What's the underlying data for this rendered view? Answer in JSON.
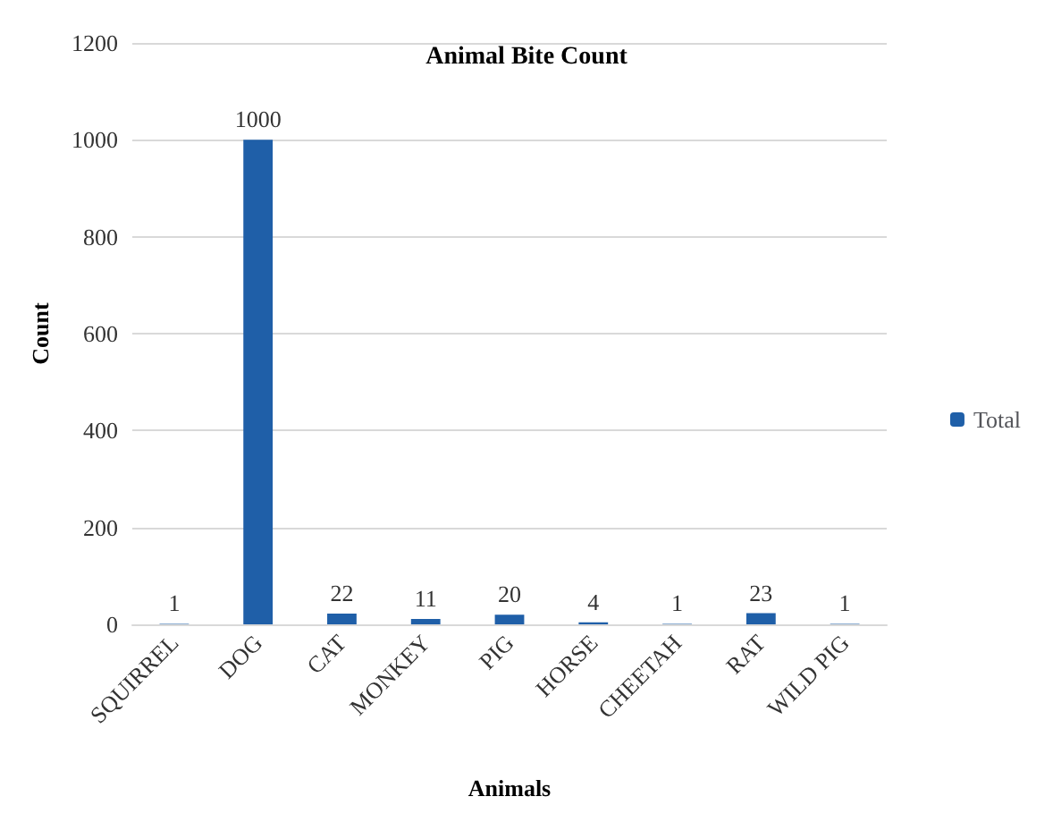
{
  "chart_data": {
    "type": "bar",
    "title": "Animal Bite Count",
    "xlabel": "Animals",
    "ylabel": "Count",
    "categories": [
      "SQUIRREL",
      "DOG",
      "CAT",
      "MONKEY",
      "PIG",
      "HORSE",
      "CHEETAH",
      "RAT",
      "WILD PIG"
    ],
    "series": [
      {
        "name": "Total",
        "color": "#1f5fa8",
        "values": [
          1,
          1000,
          22,
          11,
          20,
          4,
          1,
          23,
          1
        ]
      }
    ],
    "ylim": [
      0,
      1200
    ],
    "yticks": [
      0,
      200,
      400,
      600,
      800,
      1000,
      1200
    ],
    "grid": "y",
    "legend": "right",
    "data_labels": true
  }
}
